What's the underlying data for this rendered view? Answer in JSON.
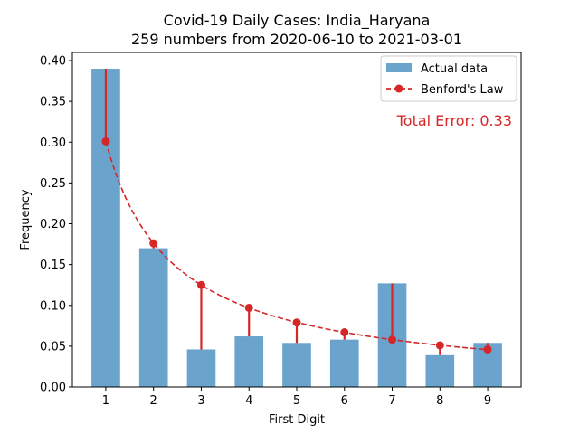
{
  "chart_data": {
    "type": "bar",
    "title_line1": "Covid-19 Daily Cases: India_Haryana",
    "title_line2": "259 numbers from 2020-06-10 to 2021-03-01",
    "xlabel": "First Digit",
    "ylabel": "Frequency",
    "categories": [
      "1",
      "2",
      "3",
      "4",
      "5",
      "6",
      "7",
      "8",
      "9"
    ],
    "ylim": [
      0,
      0.41
    ],
    "yticks": [
      0.0,
      0.05,
      0.1,
      0.15,
      0.2,
      0.25,
      0.3,
      0.35,
      0.4
    ],
    "ytick_labels": [
      "0.00",
      "0.05",
      "0.10",
      "0.15",
      "0.20",
      "0.25",
      "0.30",
      "0.35",
      "0.40"
    ],
    "grid": false,
    "legend_placement": "top-right",
    "series": [
      {
        "name": "Actual data",
        "type": "bar",
        "color": "#6aa3cc",
        "values": [
          0.39,
          0.17,
          0.046,
          0.062,
          0.054,
          0.058,
          0.127,
          0.039,
          0.054
        ]
      },
      {
        "name": "Benford's Law",
        "type": "line",
        "style": "dashed-with-markers",
        "color": "#d62728",
        "values": [
          0.301,
          0.176,
          0.125,
          0.097,
          0.079,
          0.067,
          0.058,
          0.051,
          0.046
        ]
      }
    ],
    "annotation": {
      "text": "Total Error: 0.33",
      "color": "#d62728",
      "placement": "top-right"
    }
  }
}
